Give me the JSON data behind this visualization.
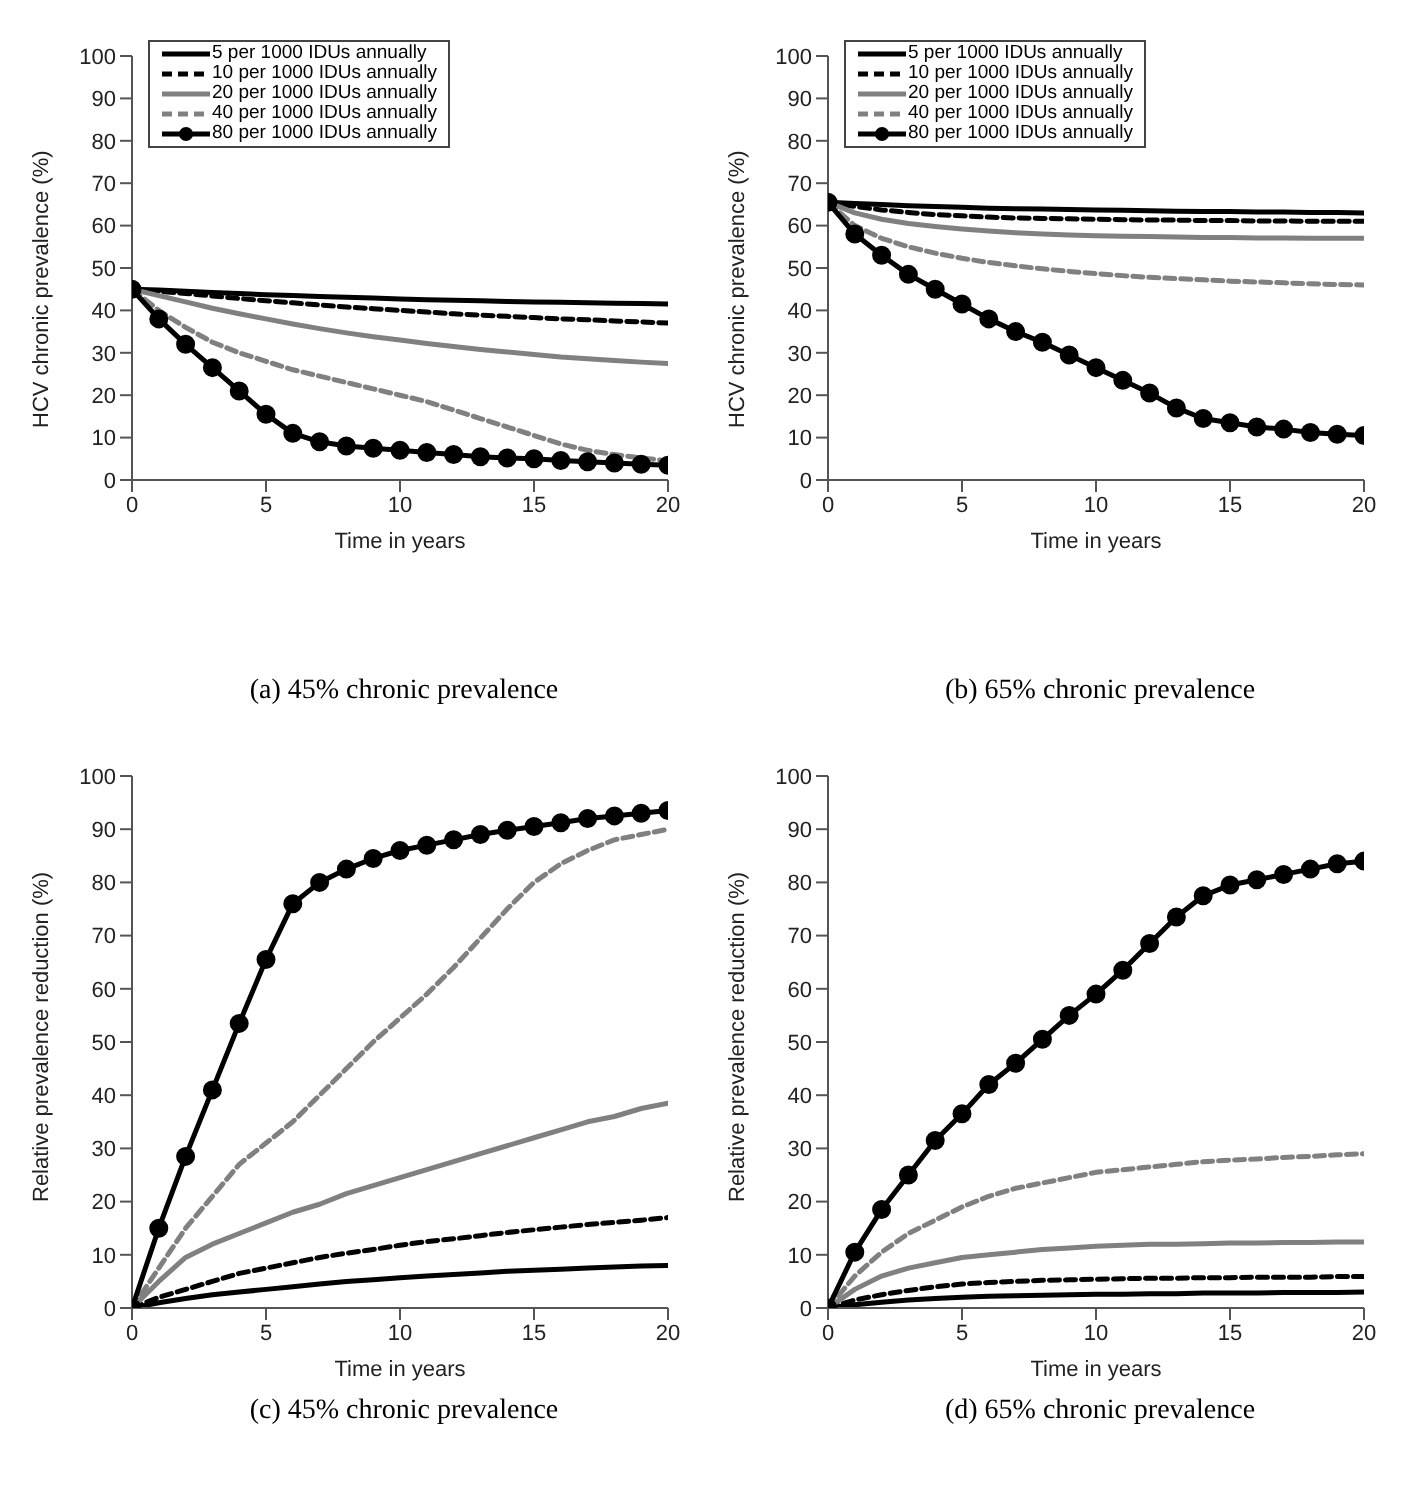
{
  "chart_data": [
    {
      "type": "line",
      "xlabel": "Time in years",
      "ylabel": "HCV chronic prevalence (%)",
      "annotations": [
        "(a) 45% chronic prevalence"
      ],
      "xlim": [
        0,
        20
      ],
      "xticks": [
        0,
        5,
        10,
        15,
        20
      ],
      "ylim": [
        0,
        100
      ],
      "yticks": [
        0,
        10,
        20,
        30,
        40,
        50,
        60,
        70,
        80,
        90,
        100
      ],
      "legend": "top left",
      "grid": false,
      "x": [
        0,
        1,
        2,
        3,
        4,
        5,
        6,
        7,
        8,
        9,
        10,
        11,
        12,
        13,
        14,
        15,
        16,
        17,
        18,
        19,
        20
      ],
      "series": [
        {
          "name": "5 per 1000 IDUs annually",
          "color": "#000000",
          "line_style": "solid",
          "marker": "none",
          "values": [
            45,
            44.8,
            44.5,
            44.2,
            44,
            43.7,
            43.5,
            43.3,
            43.1,
            42.9,
            42.7,
            42.5,
            42.4,
            42.3,
            42.1,
            42,
            41.9,
            41.8,
            41.7,
            41.6,
            41.5
          ]
        },
        {
          "name": "10 per 1000 IDUs annually",
          "color": "#000000",
          "line_style": "dashed",
          "marker": "none",
          "values": [
            45,
            44.5,
            44,
            43.4,
            42.8,
            42.3,
            41.8,
            41.3,
            40.8,
            40.4,
            40,
            39.6,
            39.2,
            38.9,
            38.6,
            38.3,
            38,
            37.8,
            37.5,
            37.3,
            37
          ]
        },
        {
          "name": "20 per 1000 IDUs annually",
          "color": "#808080",
          "line_style": "solid",
          "marker": "none",
          "values": [
            45,
            43.5,
            42,
            40.5,
            39.2,
            38,
            36.8,
            35.7,
            34.7,
            33.8,
            33,
            32.2,
            31.5,
            30.8,
            30.2,
            29.6,
            29,
            28.6,
            28.2,
            27.8,
            27.5
          ]
        },
        {
          "name": "40 per 1000 IDUs annually",
          "color": "#808080",
          "line_style": "dashed",
          "marker": "none",
          "values": [
            45,
            40,
            36,
            32.5,
            30,
            28,
            26,
            24.5,
            23,
            21.5,
            20,
            18.5,
            16.5,
            14.5,
            12.5,
            10.5,
            8.5,
            7,
            6,
            5.2,
            4.5
          ]
        },
        {
          "name": "80 per 1000 IDUs annually",
          "color": "#000000",
          "line_style": "solid",
          "marker": "circle",
          "values": [
            45,
            38,
            32,
            26.5,
            21,
            15.5,
            11,
            9,
            8,
            7.5,
            7,
            6.5,
            6,
            5.5,
            5.2,
            5,
            4.6,
            4.3,
            4,
            3.7,
            3.5
          ]
        }
      ]
    },
    {
      "type": "line",
      "xlabel": "Time in years",
      "ylabel": "HCV chronic prevalence (%)",
      "annotations": [
        "(b) 65% chronic prevalence"
      ],
      "xlim": [
        0,
        20
      ],
      "xticks": [
        0,
        5,
        10,
        15,
        20
      ],
      "ylim": [
        0,
        100
      ],
      "yticks": [
        0,
        10,
        20,
        30,
        40,
        50,
        60,
        70,
        80,
        90,
        100
      ],
      "legend": "top left",
      "grid": false,
      "x": [
        0,
        1,
        2,
        3,
        4,
        5,
        6,
        7,
        8,
        9,
        10,
        11,
        12,
        13,
        14,
        15,
        16,
        17,
        18,
        19,
        20
      ],
      "series": [
        {
          "name": "5 per 1000 IDUs annually",
          "color": "#000000",
          "line_style": "solid",
          "marker": "none",
          "values": [
            65.5,
            65.2,
            65,
            64.7,
            64.5,
            64.3,
            64.1,
            64,
            63.9,
            63.8,
            63.7,
            63.6,
            63.5,
            63.4,
            63.3,
            63.3,
            63.2,
            63.2,
            63.1,
            63.1,
            63
          ]
        },
        {
          "name": "10 per 1000 IDUs annually",
          "color": "#000000",
          "line_style": "dashed",
          "marker": "none",
          "values": [
            65.5,
            64.5,
            63.7,
            63.1,
            62.6,
            62.3,
            62,
            61.8,
            61.7,
            61.6,
            61.5,
            61.4,
            61.3,
            61.3,
            61.2,
            61.2,
            61.1,
            61.1,
            61,
            61,
            61
          ]
        },
        {
          "name": "20 per 1000 IDUs annually",
          "color": "#808080",
          "line_style": "solid",
          "marker": "none",
          "values": [
            65.5,
            63,
            61.5,
            60.5,
            59.8,
            59.2,
            58.7,
            58.3,
            58,
            57.8,
            57.6,
            57.5,
            57.4,
            57.3,
            57.2,
            57.2,
            57.1,
            57.1,
            57,
            57,
            57
          ]
        },
        {
          "name": "40 per 1000 IDUs annually",
          "color": "#808080",
          "line_style": "dashed",
          "marker": "none",
          "values": [
            65.5,
            60,
            57,
            55,
            53.5,
            52.3,
            51.3,
            50.5,
            49.8,
            49.2,
            48.7,
            48.2,
            47.8,
            47.5,
            47.2,
            46.9,
            46.7,
            46.5,
            46.3,
            46.1,
            46
          ]
        },
        {
          "name": "80 per 1000 IDUs annually",
          "color": "#000000",
          "line_style": "solid",
          "marker": "circle",
          "values": [
            65.5,
            58,
            53,
            48.5,
            45,
            41.5,
            38,
            35,
            32.5,
            29.5,
            26.5,
            23.5,
            20.5,
            17,
            14.5,
            13.5,
            12.5,
            12,
            11.2,
            10.8,
            10.5
          ]
        }
      ]
    },
    {
      "type": "line",
      "xlabel": "Time in years",
      "ylabel": "Relative prevalence reduction (%)",
      "annotations": [
        "(c) 45% chronic prevalence"
      ],
      "xlim": [
        0,
        20
      ],
      "xticks": [
        0,
        5,
        10,
        15,
        20
      ],
      "ylim": [
        0,
        100
      ],
      "yticks": [
        0,
        10,
        20,
        30,
        40,
        50,
        60,
        70,
        80,
        90,
        100
      ],
      "grid": false,
      "x": [
        0,
        1,
        2,
        3,
        4,
        5,
        6,
        7,
        8,
        9,
        10,
        11,
        12,
        13,
        14,
        15,
        16,
        17,
        18,
        19,
        20
      ],
      "series": [
        {
          "color": "#000000",
          "line_style": "solid",
          "marker": "none",
          "values": [
            0,
            1,
            1.8,
            2.5,
            3,
            3.5,
            4,
            4.5,
            5,
            5.3,
            5.7,
            6,
            6.3,
            6.6,
            6.9,
            7.1,
            7.3,
            7.5,
            7.7,
            7.9,
            8
          ]
        },
        {
          "color": "#000000",
          "line_style": "dashed",
          "marker": "none",
          "values": [
            0,
            2,
            3.5,
            5,
            6.5,
            7.5,
            8.5,
            9.5,
            10.3,
            11,
            11.8,
            12.5,
            13,
            13.6,
            14.2,
            14.7,
            15.2,
            15.7,
            16.1,
            16.5,
            17
          ]
        },
        {
          "color": "#808080",
          "line_style": "solid",
          "marker": "none",
          "values": [
            0,
            5,
            9.5,
            12,
            14,
            16,
            18,
            19.5,
            21.5,
            23,
            24.5,
            26,
            27.5,
            29,
            30.5,
            32,
            33.5,
            35,
            36,
            37.5,
            38.5
          ]
        },
        {
          "color": "#808080",
          "line_style": "dashed",
          "marker": "none",
          "values": [
            0,
            7.5,
            15,
            21,
            27,
            31,
            35,
            40,
            45,
            50,
            54.5,
            59,
            64,
            69.5,
            75,
            80,
            83.5,
            86,
            88,
            89,
            90
          ]
        },
        {
          "color": "#000000",
          "line_style": "solid",
          "marker": "circle",
          "values": [
            0,
            15,
            28.5,
            41,
            53.5,
            65.5,
            76,
            80,
            82.5,
            84.5,
            86,
            87,
            88,
            89,
            89.8,
            90.5,
            91.2,
            92,
            92.5,
            93,
            93.5
          ]
        }
      ]
    },
    {
      "type": "line",
      "xlabel": "Time in years",
      "ylabel": "Relative prevalence reduction (%)",
      "annotations": [
        "(d) 65% chronic prevalence"
      ],
      "xlim": [
        0,
        20
      ],
      "xticks": [
        0,
        5,
        10,
        15,
        20
      ],
      "ylim": [
        0,
        100
      ],
      "yticks": [
        0,
        10,
        20,
        30,
        40,
        50,
        60,
        70,
        80,
        90,
        100
      ],
      "grid": false,
      "x": [
        0,
        1,
        2,
        3,
        4,
        5,
        6,
        7,
        8,
        9,
        10,
        11,
        12,
        13,
        14,
        15,
        16,
        17,
        18,
        19,
        20
      ],
      "series": [
        {
          "color": "#000000",
          "line_style": "solid",
          "marker": "none",
          "values": [
            0,
            0.6,
            1.1,
            1.5,
            1.8,
            2,
            2.2,
            2.3,
            2.4,
            2.5,
            2.6,
            2.6,
            2.7,
            2.7,
            2.8,
            2.8,
            2.8,
            2.9,
            2.9,
            2.9,
            3
          ]
        },
        {
          "color": "#000000",
          "line_style": "dashed",
          "marker": "none",
          "values": [
            0,
            1.5,
            2.5,
            3.3,
            4,
            4.5,
            4.8,
            5,
            5.2,
            5.3,
            5.4,
            5.5,
            5.6,
            5.6,
            5.7,
            5.7,
            5.8,
            5.8,
            5.8,
            5.9,
            5.9
          ]
        },
        {
          "color": "#808080",
          "line_style": "solid",
          "marker": "none",
          "values": [
            0,
            3.5,
            6,
            7.5,
            8.5,
            9.5,
            10,
            10.5,
            11,
            11.3,
            11.6,
            11.8,
            12,
            12,
            12.1,
            12.2,
            12.2,
            12.3,
            12.3,
            12.4,
            12.4
          ]
        },
        {
          "color": "#808080",
          "line_style": "dashed",
          "marker": "none",
          "values": [
            0,
            6,
            10.5,
            14,
            16.5,
            19,
            21,
            22.5,
            23.5,
            24.5,
            25.5,
            26,
            26.5,
            27,
            27.5,
            27.8,
            28,
            28.3,
            28.5,
            28.8,
            29
          ]
        },
        {
          "color": "#000000",
          "line_style": "solid",
          "marker": "circle",
          "values": [
            0,
            10.5,
            18.5,
            25,
            31.5,
            36.5,
            42,
            46,
            50.5,
            55,
            59,
            63.5,
            68.5,
            73.5,
            77.5,
            79.5,
            80.5,
            81.5,
            82.5,
            83.5,
            84
          ]
        }
      ]
    }
  ]
}
